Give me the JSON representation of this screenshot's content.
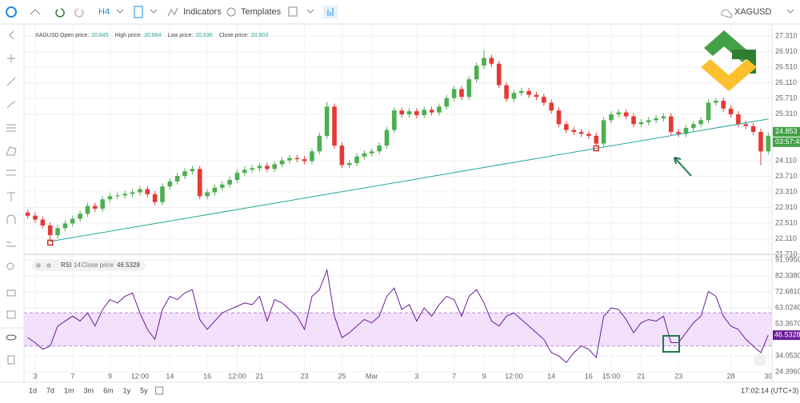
{
  "toolbar": {
    "interval": "H4",
    "indicators": "Indicators",
    "templates": "Templates",
    "symbol": "XAGUSD"
  },
  "legend": {
    "symbol": "XAGUSD",
    "items": [
      {
        "label": "Open price:",
        "value": 20.645
      },
      {
        "label": "High price:",
        "value": 20.684
      },
      {
        "label": "Low price:",
        "value": 20.636
      },
      {
        "label": "Close price:",
        "value": 20.603
      }
    ]
  },
  "ranges": [
    "1d",
    "7d",
    "1m",
    "3m",
    "6m",
    "1y",
    "5y"
  ],
  "clock": "17:02:14 (UTC+3)",
  "chart_data": [
    {
      "type": "candlestick",
      "categories": [
        null,
        "3",
        null,
        null,
        null,
        null,
        "7",
        null,
        null,
        null,
        null,
        "9",
        null,
        null,
        null,
        "12:00",
        null,
        null,
        null,
        "14",
        null,
        null,
        null,
        null,
        "16",
        null,
        null,
        null,
        "12:00",
        null,
        null,
        "21",
        null,
        null,
        null,
        null,
        null,
        "23",
        null,
        null,
        null,
        null,
        "25",
        null,
        null,
        null,
        "Mar",
        null,
        null,
        null,
        null,
        null,
        "3",
        null,
        null,
        null,
        null,
        "7",
        null,
        null,
        null,
        "9",
        null,
        null,
        null,
        "12:00",
        null,
        null,
        null,
        null,
        "14",
        null,
        null,
        null,
        null,
        "16",
        null,
        null,
        "15:00",
        null,
        null,
        null,
        "21",
        null,
        null,
        null,
        null,
        "23",
        null,
        null,
        null,
        null,
        null,
        null,
        "28",
        null,
        null,
        null,
        null,
        "30"
      ],
      "open": [
        22.78,
        22.7,
        22.6,
        22.45,
        22.2,
        22.38,
        22.5,
        22.62,
        22.75,
        22.95,
        22.88,
        23.12,
        23.2,
        23.22,
        23.26,
        23.3,
        23.38,
        23.25,
        23.05,
        23.45,
        23.58,
        23.72,
        23.84,
        23.9,
        23.2,
        23.3,
        23.42,
        23.5,
        23.62,
        23.8,
        23.88,
        23.92,
        23.98,
        23.9,
        24.02,
        24.12,
        24.18,
        24.15,
        24.1,
        24.35,
        24.75,
        25.5,
        24.5,
        24.0,
        24.05,
        24.22,
        24.3,
        24.35,
        24.5,
        24.9,
        25.4,
        25.3,
        25.38,
        25.28,
        25.42,
        25.35,
        25.5,
        25.72,
        25.95,
        25.75,
        26.2,
        26.55,
        26.75,
        26.6,
        26.05,
        25.7,
        25.85,
        25.9,
        25.8,
        25.75,
        25.6,
        25.4,
        25.05,
        24.9,
        24.85,
        24.8,
        24.75,
        24.55,
        25.15,
        25.3,
        25.35,
        25.25,
        25.05,
        25.1,
        25.15,
        25.2,
        25.25,
        24.85,
        24.8,
        24.95,
        25.05,
        25.15,
        25.6,
        25.65,
        25.45,
        25.3,
        25.05,
        25.0,
        24.85,
        24.35
      ],
      "high": [
        22.86,
        22.78,
        22.68,
        22.53,
        22.46,
        22.58,
        22.7,
        22.83,
        23.03,
        23.03,
        23.2,
        23.28,
        23.3,
        23.34,
        23.38,
        23.46,
        23.46,
        23.33,
        23.53,
        23.66,
        23.8,
        23.92,
        23.98,
        23.98,
        23.38,
        23.5,
        23.58,
        23.7,
        23.88,
        23.96,
        24.0,
        24.06,
        24.06,
        24.1,
        24.2,
        24.26,
        24.26,
        24.23,
        24.43,
        24.83,
        25.62,
        25.58,
        24.58,
        24.13,
        24.3,
        24.38,
        24.43,
        24.58,
        24.98,
        25.48,
        25.48,
        25.46,
        25.46,
        25.5,
        25.5,
        25.58,
        25.8,
        26.03,
        26.03,
        26.28,
        26.63,
        26.95,
        26.83,
        26.68,
        26.13,
        25.93,
        25.98,
        25.98,
        25.88,
        25.83,
        25.68,
        25.48,
        25.13,
        24.98,
        24.93,
        24.88,
        24.83,
        25.23,
        25.38,
        25.43,
        25.43,
        25.33,
        25.18,
        25.23,
        25.28,
        25.33,
        25.33,
        24.93,
        25.03,
        25.13,
        25.23,
        25.68,
        25.73,
        25.73,
        25.53,
        25.38,
        25.13,
        25.08,
        24.93,
        24.83
      ],
      "low": [
        22.62,
        22.52,
        22.37,
        22.05,
        22.12,
        22.3,
        22.42,
        22.54,
        22.67,
        22.8,
        22.8,
        23.04,
        23.12,
        23.14,
        23.18,
        23.22,
        23.17,
        22.97,
        22.97,
        23.37,
        23.5,
        23.64,
        23.76,
        23.12,
        23.12,
        23.22,
        23.34,
        23.42,
        23.54,
        23.72,
        23.8,
        23.84,
        23.82,
        23.82,
        23.94,
        24.04,
        24.07,
        24.02,
        24.02,
        24.27,
        24.67,
        24.42,
        23.92,
        23.92,
        23.97,
        24.14,
        24.22,
        24.27,
        24.42,
        24.82,
        25.22,
        25.22,
        25.2,
        25.2,
        25.27,
        25.27,
        25.42,
        25.64,
        25.67,
        25.67,
        26.12,
        26.47,
        26.52,
        25.97,
        25.62,
        25.62,
        25.77,
        25.72,
        25.67,
        25.52,
        25.32,
        24.97,
        24.82,
        24.77,
        24.72,
        24.67,
        24.47,
        24.47,
        25.07,
        25.22,
        25.17,
        24.97,
        24.97,
        25.02,
        25.07,
        25.12,
        24.77,
        24.72,
        24.72,
        24.87,
        24.97,
        25.07,
        25.52,
        25.37,
        25.22,
        24.97,
        24.92,
        24.77,
        24.0,
        24.27
      ],
      "close": [
        22.7,
        22.6,
        22.45,
        22.2,
        22.38,
        22.5,
        22.62,
        22.75,
        22.95,
        22.88,
        23.12,
        23.2,
        23.22,
        23.26,
        23.3,
        23.38,
        23.25,
        23.05,
        23.45,
        23.58,
        23.72,
        23.84,
        23.9,
        23.2,
        23.3,
        23.42,
        23.5,
        23.62,
        23.8,
        23.88,
        23.92,
        23.98,
        23.9,
        24.02,
        24.12,
        24.18,
        24.15,
        24.1,
        24.35,
        24.75,
        25.5,
        24.5,
        24.0,
        24.05,
        24.22,
        24.3,
        24.35,
        24.5,
        24.9,
        25.4,
        25.3,
        25.38,
        25.28,
        25.42,
        25.35,
        25.5,
        25.72,
        25.95,
        25.75,
        26.2,
        26.55,
        26.75,
        26.6,
        26.05,
        25.7,
        25.85,
        25.9,
        25.8,
        25.75,
        25.6,
        25.4,
        25.05,
        24.9,
        24.85,
        24.8,
        24.75,
        24.55,
        25.15,
        25.3,
        25.35,
        25.25,
        25.05,
        25.1,
        25.15,
        25.2,
        25.25,
        24.85,
        24.8,
        24.95,
        25.05,
        25.15,
        25.6,
        25.65,
        25.45,
        25.3,
        25.05,
        25.0,
        24.85,
        24.35,
        24.75
      ],
      "up_color": "#4caf50",
      "down_color": "#e53935",
      "ylim": [
        21.71,
        27.62
      ],
      "yticks": [
        {
          "value": 27.31,
          "label": "27.310"
        },
        {
          "value": 26.91,
          "label": "26.910"
        },
        {
          "value": 26.51,
          "label": "26.510"
        },
        {
          "value": 26.11,
          "label": "26.110"
        },
        {
          "value": 25.71,
          "label": "25.710"
        },
        {
          "value": 25.31,
          "label": "25.310"
        },
        {
          "value": 24.11,
          "label": "24.110"
        },
        {
          "value": 23.71,
          "label": "23.710"
        },
        {
          "value": 23.31,
          "label": "23.310"
        },
        {
          "value": 22.91,
          "label": "22.910"
        },
        {
          "value": 22.51,
          "label": "22.510"
        },
        {
          "value": 22.11,
          "label": "22.110"
        },
        {
          "value": 21.71,
          "label": "21.710"
        }
      ],
      "grid": true,
      "current_price": 24.853,
      "countdown": "03:57:45",
      "trendline": {
        "indices": [
          3,
          99
        ],
        "values": [
          22.04,
          25.18
        ],
        "color": "#26a69a"
      },
      "markers": [
        3,
        76
      ]
    },
    {
      "type": "line",
      "name": "RSI",
      "period": 14,
      "source": "Close price",
      "color": "#6a1b9a",
      "values": [
        45,
        42,
        38,
        40,
        52,
        55,
        58,
        55,
        60,
        52,
        62,
        68,
        66,
        70,
        72,
        60,
        50,
        44,
        62,
        70,
        68,
        72,
        74,
        56,
        50,
        55,
        60,
        62,
        64,
        66,
        65,
        70,
        55,
        68,
        66,
        62,
        58,
        50,
        70,
        74,
        86,
        58,
        45,
        48,
        52,
        56,
        54,
        58,
        70,
        75,
        62,
        65,
        55,
        63,
        58,
        65,
        70,
        68,
        58,
        70,
        74,
        66,
        55,
        52,
        58,
        60,
        56,
        52,
        48,
        44,
        36,
        34,
        30,
        36,
        40,
        38,
        33,
        58,
        63,
        62,
        56,
        48,
        54,
        56,
        55,
        58,
        42,
        42,
        48,
        54,
        58,
        73,
        70,
        58,
        52,
        50,
        44,
        40,
        36,
        46.5328
      ],
      "band": [
        40,
        60
      ],
      "band_color": "#f3e0fb",
      "ylim": [
        23.9,
        95.4
      ],
      "yticks": [
        {
          "value": 91.995,
          "label": "91.9950"
        },
        {
          "value": 82.338,
          "label": "82.3380"
        },
        {
          "value": 72.681,
          "label": "72.6810"
        },
        {
          "value": 63.024,
          "label": "63.0240"
        },
        {
          "value": 53.367,
          "label": "53.3670"
        },
        {
          "value": 34.053,
          "label": "34.0530"
        },
        {
          "value": 24.396,
          "label": "24.3960"
        }
      ],
      "grid": true
    }
  ]
}
